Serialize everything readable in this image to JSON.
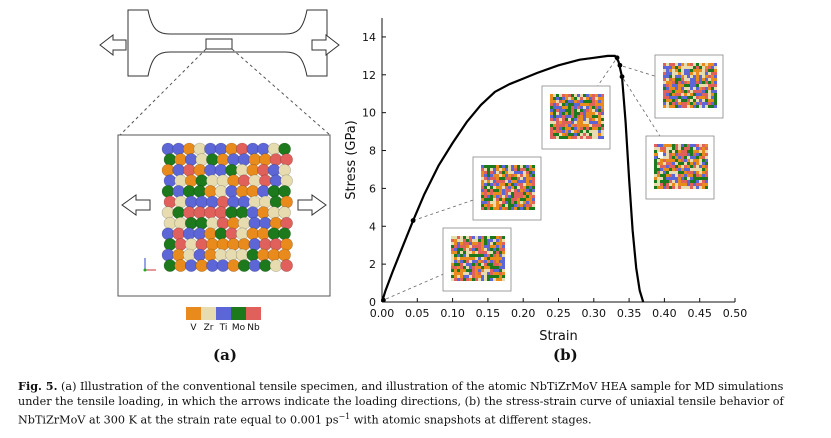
{
  "panel_a": {
    "label": "(a)",
    "legend": [
      {
        "name": "V",
        "color": "#e98a1c"
      },
      {
        "name": "Zr",
        "color": "#e6dcb0"
      },
      {
        "name": "Ti",
        "color": "#5c66d6"
      },
      {
        "name": "Mo",
        "color": "#1c7a1c"
      },
      {
        "name": "Nb",
        "color": "#e0605c"
      }
    ]
  },
  "panel_b": {
    "label": "(b)"
  },
  "chart_data": {
    "type": "line",
    "xlabel": "Strain",
    "ylabel": "Stress (GPa)",
    "xlim": [
      0,
      0.5
    ],
    "ylim": [
      0,
      15
    ],
    "xticks": [
      "0.00",
      "0.05",
      "0.10",
      "0.15",
      "0.20",
      "0.25",
      "0.30",
      "0.35",
      "0.40",
      "0.45",
      "0.50"
    ],
    "yticks": [
      "0",
      "2",
      "4",
      "6",
      "8",
      "10",
      "12",
      "14"
    ],
    "series": [
      {
        "values_x": [
          0.0,
          0.005,
          0.015,
          0.03,
          0.044,
          0.06,
          0.08,
          0.1,
          0.12,
          0.14,
          0.16,
          0.18,
          0.2,
          0.22,
          0.25,
          0.28,
          0.3,
          0.32,
          0.33,
          0.335,
          0.34,
          0.345,
          0.35,
          0.355,
          0.36,
          0.365,
          0.37
        ],
        "values_y": [
          0.0,
          0.6,
          1.6,
          3.0,
          4.3,
          5.7,
          7.2,
          8.4,
          9.5,
          10.4,
          11.1,
          11.5,
          11.8,
          12.1,
          12.5,
          12.8,
          12.9,
          13.0,
          13.0,
          12.7,
          11.9,
          9.5,
          6.5,
          3.8,
          1.8,
          0.6,
          0.0
        ]
      }
    ],
    "markers": [
      {
        "x": 0.002,
        "y": 0.1
      },
      {
        "x": 0.044,
        "y": 4.3
      },
      {
        "x": 0.333,
        "y": 12.9
      },
      {
        "x": 0.337,
        "y": 12.5
      },
      {
        "x": 0.34,
        "y": 11.9
      }
    ],
    "grid": false
  },
  "caption": {
    "fig_label": "Fig. 5.",
    "text": "(a) Illustration of the conventional tensile specimen, and illustration of the atomic NbTiZrMoV HEA sample for MD simulations under the tensile loading, in which the arrows indicate the loading directions, (b) the stress-strain curve of uniaxial tensile behavior of NbTiZrMoV at 300 K at the strain rate equal to 0.001 ps",
    "superscript": "−1",
    "tail": " with atomic snapshots at different stages."
  }
}
